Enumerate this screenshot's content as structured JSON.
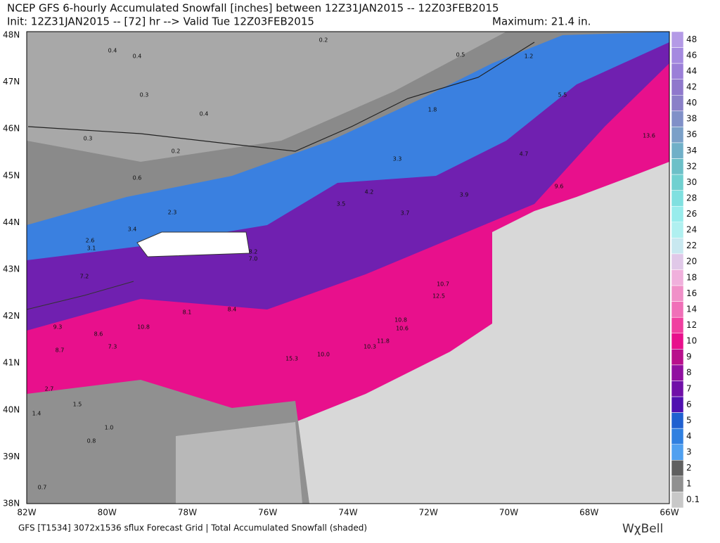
{
  "header": {
    "title": "NCEP GFS 6-hourly Accumulated Snowfall [inches] between 12Z31JAN2015 -- 12Z03FEB2015",
    "subtitle": "Init: 12Z31JAN2015 -- [72] hr --> Valid Tue 12Z03FEB2015",
    "maximum": "Maximum:  21.4 in."
  },
  "lat_labels": [
    "48N",
    "47N",
    "46N",
    "45N",
    "44N",
    "43N",
    "42N",
    "41N",
    "40N",
    "39N",
    "38N"
  ],
  "lon_labels": [
    "82W",
    "80W",
    "78W",
    "76W",
    "74W",
    "72W",
    "70W",
    "68W",
    "66W"
  ],
  "colorbar": {
    "levels": [
      48,
      46,
      44,
      42,
      40,
      38,
      36,
      34,
      32,
      30,
      28,
      26,
      24,
      22,
      20,
      18,
      16,
      14,
      12,
      10,
      9,
      8,
      7,
      6,
      5,
      4,
      3,
      2,
      1,
      0.1
    ],
    "colors": [
      "#b49ae6",
      "#a58ae0",
      "#9b7fd8",
      "#8f78cc",
      "#8a80c8",
      "#8090c8",
      "#7aa0c8",
      "#70b0c8",
      "#6cc0c8",
      "#70d0d0",
      "#80e0e0",
      "#98ecec",
      "#b0f0f0",
      "#c8e8f0",
      "#e0c8e8",
      "#f0b0dc",
      "#f090c8",
      "#f070b8",
      "#f040a0",
      "#e8108c",
      "#b8108c",
      "#9010a0",
      "#7010a8",
      "#5010b0",
      "#2060d0",
      "#3080e0",
      "#50a0f0",
      "#606060",
      "#909090",
      "#c8c8c8"
    ]
  },
  "map_labels": [
    "0.4",
    "0.4",
    "0.2",
    "0.5",
    "0.3",
    "0.4",
    "0.2",
    "0.3",
    "0.6",
    "2.3",
    "3.4",
    "2.6",
    "3.1",
    "2.7",
    "7.2",
    "9.3",
    "8.6",
    "8.7",
    "7.3",
    "10.8",
    "8.1",
    "8.4",
    "7.0",
    "8.2",
    "15.3",
    "10.0",
    "10.3",
    "11.8",
    "10.8",
    "10.6",
    "12.5",
    "10.7",
    "3.5",
    "4.2",
    "3.3",
    "3.9",
    "4.7",
    "5.5",
    "9.6",
    "13.6",
    "3.7",
    "1.0",
    "0.8",
    "1.4",
    "0.7",
    "1.5",
    "1.2",
    "1.8"
  ],
  "footer": {
    "description": "GFS [T1534] 3072x1536 sflux Forecast Grid | Total Accumulated Snowfall (shaded)",
    "brand": "WχBell"
  }
}
